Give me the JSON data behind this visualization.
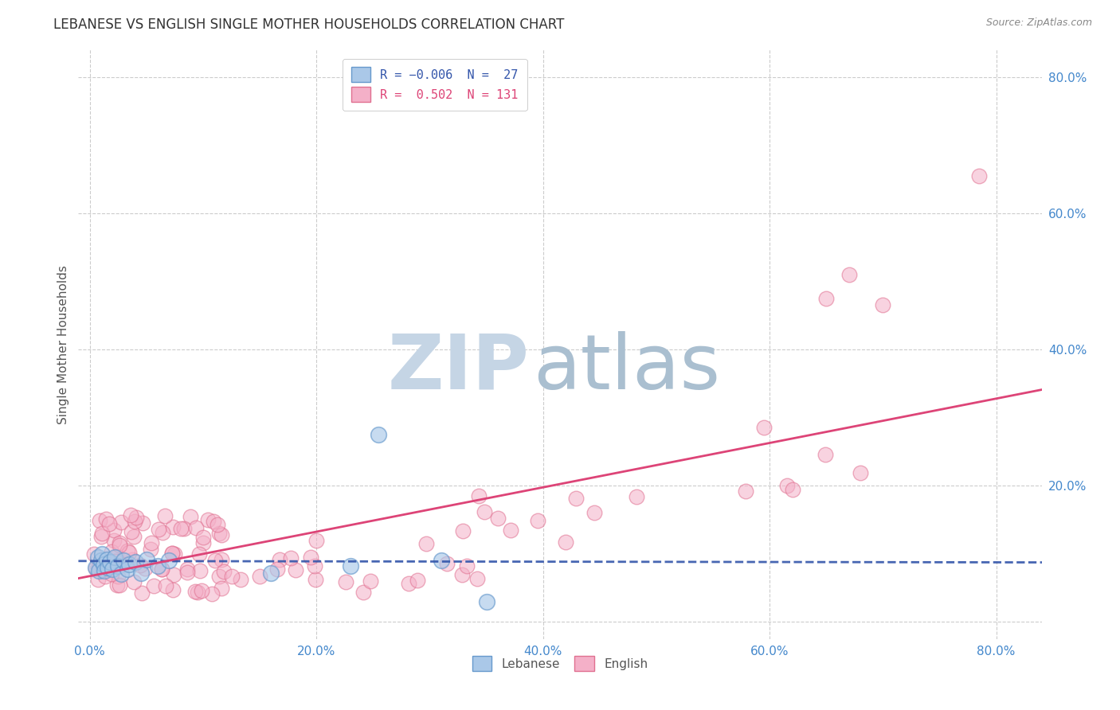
{
  "title": "LEBANESE VS ENGLISH SINGLE MOTHER HOUSEHOLDS CORRELATION CHART",
  "source": "Source: ZipAtlas.com",
  "ylabel": "Single Mother Households",
  "xlim": [
    -0.01,
    0.84
  ],
  "ylim": [
    -0.025,
    0.84
  ],
  "xticks": [
    0.0,
    0.2,
    0.4,
    0.6,
    0.8
  ],
  "yticks": [
    0.0,
    0.2,
    0.4,
    0.6,
    0.8
  ],
  "ytick_labels_right": [
    "",
    "20.0%",
    "40.0%",
    "60.0%",
    "80.0%"
  ],
  "xtick_labels": [
    "0.0%",
    "20.0%",
    "40.0%",
    "60.0%",
    "80.0%"
  ],
  "lebanese_color": "#aac8e8",
  "lebanese_edge": "#6699cc",
  "english_color": "#f4b0c8",
  "english_edge": "#e07090",
  "lebanese_line_color": "#3355aa",
  "english_line_color": "#dd4477",
  "axis_tick_color": "#4488cc",
  "grid_color": "#cccccc",
  "background_color": "#ffffff",
  "title_color": "#333333",
  "watermark_zip_color": "#c5d5e5",
  "watermark_atlas_color": "#aabfd0",
  "leb_R": -0.006,
  "leb_N": 27,
  "eng_R": 0.502,
  "eng_N": 131
}
